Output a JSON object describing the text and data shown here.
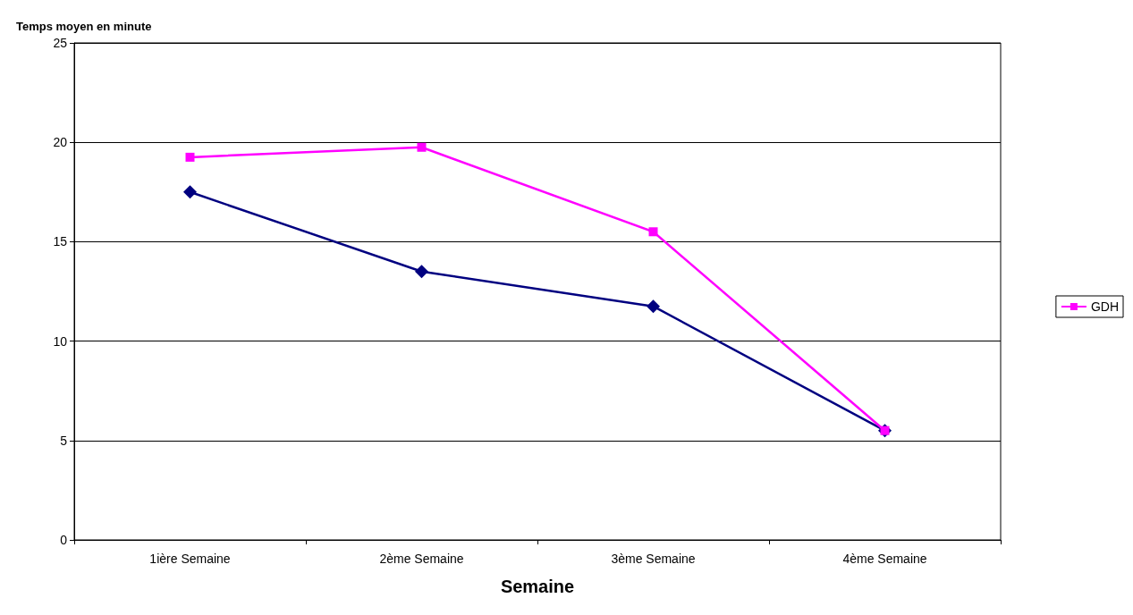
{
  "chart_data": {
    "type": "line",
    "ylabel": "Temps moyen en minute",
    "xlabel": "Semaine",
    "categories": [
      "1ière Semaine",
      "2ème Semaine",
      "3ème Semaine",
      "4ème Semaine"
    ],
    "series": [
      {
        "color": "#000080",
        "marker": "diamond",
        "values": [
          17.5,
          13.5,
          11.75,
          5.5
        ]
      },
      {
        "name": "GDH",
        "color": "#ff00ff",
        "marker": "square",
        "values": [
          19.25,
          19.75,
          15.5,
          5.5
        ]
      }
    ],
    "ylim": [
      0,
      25
    ],
    "yticks": [
      0,
      5,
      10,
      15,
      20,
      25
    ],
    "grid": "y",
    "legend": "right",
    "line_style": "solid"
  }
}
